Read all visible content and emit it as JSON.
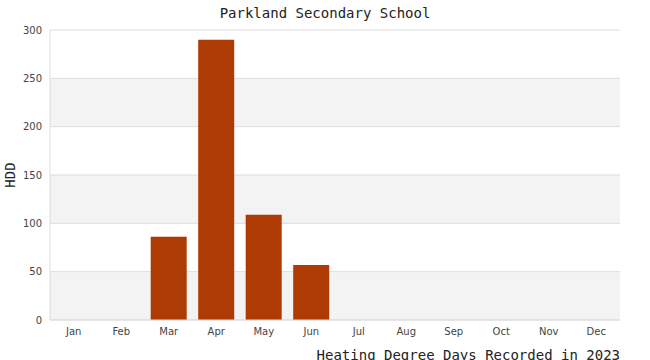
{
  "chart_data": {
    "type": "bar",
    "title": "Parkland Secondary School",
    "x_label": "Heating Degree Days Recorded in 2023",
    "y_label": "HDD",
    "categories": [
      "Jan",
      "Feb",
      "Mar",
      "Apr",
      "May",
      "Jun",
      "Jul",
      "Aug",
      "Sep",
      "Oct",
      "Nov",
      "Dec"
    ],
    "values": [
      0,
      0,
      86,
      290,
      109,
      57,
      0,
      0,
      0,
      0,
      0,
      0
    ],
    "color": "#ae3a04",
    "ylim": [
      0,
      300
    ],
    "yticks": [
      0,
      50,
      100,
      150,
      200,
      250,
      300
    ],
    "grid": true
  }
}
